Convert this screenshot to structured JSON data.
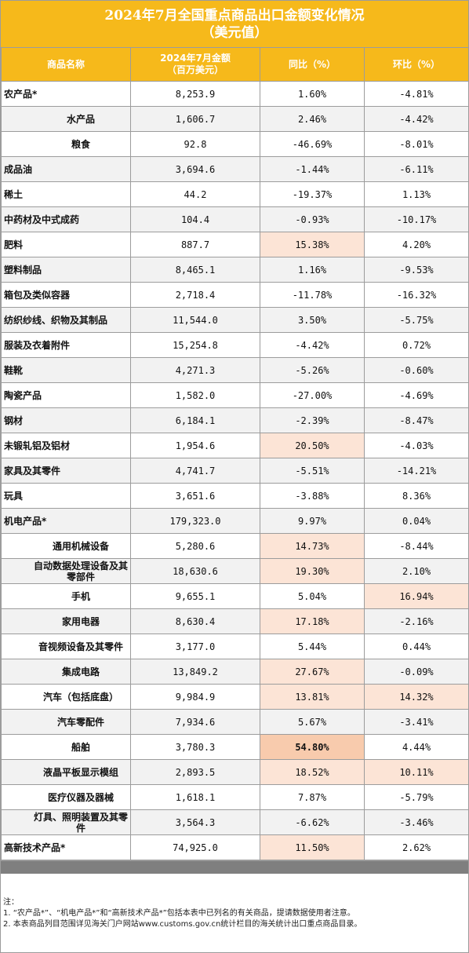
{
  "title_line1": "2024年7月全国重点商品出口金额变化情况",
  "title_line2": "（美元值）",
  "headers": {
    "name": "商品名称",
    "amount_line1": "2024年7月金额",
    "amount_line2": "（百万美元）",
    "yoy": "同比（%）",
    "mom": "环比（%）"
  },
  "rows": [
    {
      "name": "农产品*",
      "amount": "8,253.9",
      "yoy": "1.60%",
      "mom": "-4.81%"
    },
    {
      "name": "水产品",
      "amount": "1,606.7",
      "yoy": "2.46%",
      "mom": "-4.42%"
    },
    {
      "name": "粮食",
      "amount": "92.8",
      "yoy": "-46.69%",
      "mom": "-8.01%"
    },
    {
      "name": "成品油",
      "amount": "3,694.6",
      "yoy": "-1.44%",
      "mom": "-6.11%"
    },
    {
      "name": "稀土",
      "amount": "44.2",
      "yoy": "-19.37%",
      "mom": "1.13%"
    },
    {
      "name": "中药材及中式成药",
      "amount": "104.4",
      "yoy": "-0.93%",
      "mom": "-10.17%"
    },
    {
      "name": "肥料",
      "amount": "887.7",
      "yoy": "15.38%",
      "mom": "4.20%"
    },
    {
      "name": "塑料制品",
      "amount": "8,465.1",
      "yoy": "1.16%",
      "mom": "-9.53%"
    },
    {
      "name": "箱包及类似容器",
      "amount": "2,718.4",
      "yoy": "-11.78%",
      "mom": "-16.32%"
    },
    {
      "name": "纺织纱线、织物及其制品",
      "amount": "11,544.0",
      "yoy": "3.50%",
      "mom": "-5.75%"
    },
    {
      "name": "服装及衣着附件",
      "amount": "15,254.8",
      "yoy": "-4.42%",
      "mom": "0.72%"
    },
    {
      "name": "鞋靴",
      "amount": "4,271.3",
      "yoy": "-5.26%",
      "mom": "-0.60%"
    },
    {
      "name": "陶瓷产品",
      "amount": "1,582.0",
      "yoy": "-27.00%",
      "mom": "-4.69%"
    },
    {
      "name": "钢材",
      "amount": "6,184.1",
      "yoy": "-2.39%",
      "mom": "-8.47%"
    },
    {
      "name": "未锻轧铝及铝材",
      "amount": "1,954.6",
      "yoy": "20.50%",
      "mom": "-4.03%"
    },
    {
      "name": "家具及其零件",
      "amount": "4,741.7",
      "yoy": "-5.51%",
      "mom": "-14.21%"
    },
    {
      "name": "玩具",
      "amount": "3,651.6",
      "yoy": "-3.88%",
      "mom": "8.36%"
    },
    {
      "name": "机电产品*",
      "amount": "179,323.0",
      "yoy": "9.97%",
      "mom": "0.04%"
    },
    {
      "name": "通用机械设备",
      "amount": "5,280.6",
      "yoy": "14.73%",
      "mom": "-8.44%"
    },
    {
      "name": "自动数据处理设备及其零部件",
      "amount": "18,630.6",
      "yoy": "19.30%",
      "mom": "2.10%"
    },
    {
      "name": "手机",
      "amount": "9,655.1",
      "yoy": "5.04%",
      "mom": "16.94%"
    },
    {
      "name": "家用电器",
      "amount": "8,630.4",
      "yoy": "17.18%",
      "mom": "-2.16%"
    },
    {
      "name": "音视频设备及其零件",
      "amount": "3,177.0",
      "yoy": "5.44%",
      "mom": "0.44%"
    },
    {
      "name": "集成电路",
      "amount": "13,849.2",
      "yoy": "27.67%",
      "mom": "-0.09%"
    },
    {
      "name": "汽车（包括底盘）",
      "amount": "9,984.9",
      "yoy": "13.81%",
      "mom": "14.32%"
    },
    {
      "name": "汽车零配件",
      "amount": "7,934.6",
      "yoy": "5.67%",
      "mom": "-3.41%"
    },
    {
      "name": "船舶",
      "amount": "3,780.3",
      "yoy": "54.80%",
      "mom": "4.44%"
    },
    {
      "name": "液晶平板显示模组",
      "amount": "2,893.5",
      "yoy": "18.52%",
      "mom": "10.11%"
    },
    {
      "name": "医疗仪器及器械",
      "amount": "1,618.1",
      "yoy": "7.87%",
      "mom": "-5.79%"
    },
    {
      "name": "灯具、照明装置及其零件",
      "amount": "3,564.3",
      "yoy": "-6.62%",
      "mom": "-3.46%"
    },
    {
      "name": "高新技术产品*",
      "amount": "74,925.0",
      "yoy": "11.50%",
      "mom": "2.62%"
    }
  ],
  "notes": {
    "label": "注：",
    "line1": "1. “农产品*”、“机电产品*”和“高新技术产品*”包括本表中已列名的有关商品，提请数据使用者注意。",
    "line2": "2. 本表商品列目范围详见海关门户网站www.customs.gov.cn统计栏目的海关统计出口重点商品目录。"
  },
  "colors": {
    "header_bg": "#f6b91b",
    "highlight_light": "#fce4d6",
    "highlight_strong": "#f8cbad",
    "alt_row": "#f2f2f2",
    "footer_bar": "#7f7f7f"
  }
}
